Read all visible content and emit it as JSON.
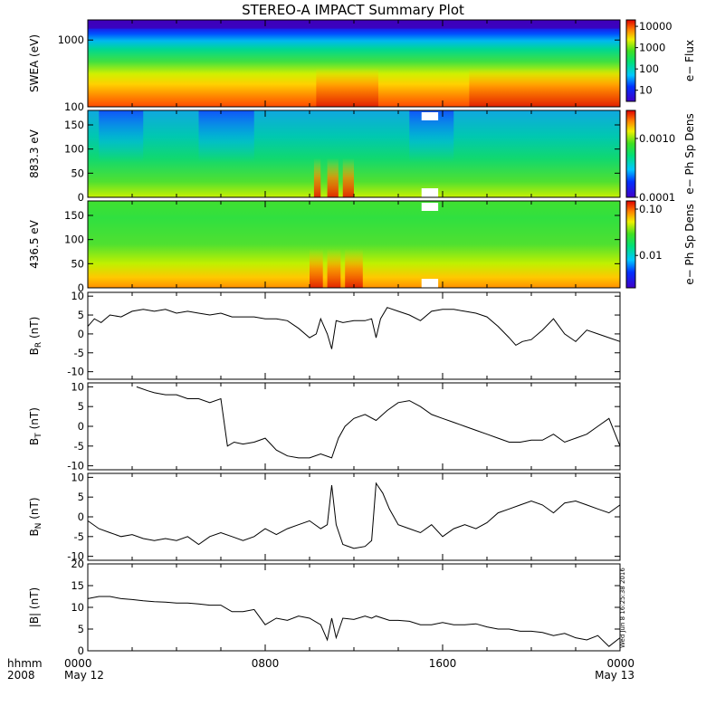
{
  "title": "STEREO-A IMPACT Summary Plot",
  "footer": {
    "hhmm": "hhmm",
    "year": "2008"
  },
  "timestamp": "Wed Jun 8 16:25:38 2016",
  "x_axis": {
    "ticks": [
      {
        "t": 0,
        "time": "0000",
        "date": "May 12"
      },
      {
        "t": 8,
        "time": "0800",
        "date": ""
      },
      {
        "t": 16,
        "time": "1600",
        "date": ""
      },
      {
        "t": 24,
        "time": "0000",
        "date": "May 13"
      }
    ],
    "range_hours": [
      0,
      24
    ]
  },
  "chart_data": [
    {
      "type": "heatmap",
      "ylabel": "SWEA (eV)",
      "yscale": "log",
      "ylim": [
        100,
        2000
      ],
      "yticks": [
        "100",
        "1000"
      ],
      "colorbar": {
        "label": "e− Flux",
        "scale": "log",
        "range": [
          3,
          20000
        ],
        "ticks": [
          "10",
          "100",
          "1000",
          "10000"
        ]
      },
      "notes": "flux highest at low energy (red below ~200 eV), green mid energies, blue/purple near 1500-2000 eV; enhanced red bands around 10:00-13:00 and 17:00-24:00"
    },
    {
      "type": "heatmap",
      "ylabel": "883.3 eV",
      "ylim": [
        0,
        180
      ],
      "yticks": [
        "0",
        "50",
        "100",
        "150"
      ],
      "colorbar": {
        "label": "e− Ph Sp Dens",
        "scale": "log",
        "range": [
          0.0001,
          0.003
        ],
        "ticks": [
          "0.0001",
          "0.0010"
        ]
      },
      "notes": "pitch angle distribution; enhanced (yellow-red) near 0-50 deg around 10:30-12:00, white data gaps near 15:00-15:45"
    },
    {
      "type": "heatmap",
      "ylabel": "436.5 eV",
      "ylim": [
        0,
        180
      ],
      "yticks": [
        "0",
        "50",
        "100",
        "150"
      ],
      "colorbar": {
        "label": "e− Ph Sp Dens",
        "scale": "log",
        "range": [
          0.002,
          0.15
        ],
        "ticks": [
          "0.01",
          "0.10"
        ]
      },
      "notes": "pitch angle distribution; red-orange near 0-50 deg around 10:00-12:30, white data gaps near 15:00-15:45"
    },
    {
      "type": "line",
      "ylabel": "B_R (nT)",
      "ylim": [
        -12,
        11
      ],
      "yticks": [
        "-10",
        "-5",
        "0",
        "5",
        "10"
      ],
      "x": [
        0,
        0.3,
        0.6,
        1,
        1.5,
        2,
        2.5,
        3,
        3.5,
        4,
        4.5,
        5,
        5.5,
        6,
        6.5,
        7,
        7.5,
        8,
        8.5,
        9,
        9.5,
        10,
        10.3,
        10.5,
        10.8,
        11,
        11.2,
        11.5,
        12,
        12.5,
        12.8,
        13,
        13.2,
        13.5,
        14,
        14.5,
        15,
        15.5,
        16,
        16.5,
        17,
        17.5,
        18,
        18.5,
        19,
        19.3,
        19.6,
        20,
        20.5,
        21,
        21.5,
        22,
        22.5,
        23,
        23.5,
        24
      ],
      "y": [
        2,
        4,
        3,
        5,
        4.5,
        6,
        6.5,
        6,
        6.5,
        5.5,
        6,
        5.5,
        5,
        5.5,
        4.5,
        4.5,
        4.5,
        4,
        4,
        3.5,
        1.5,
        -1,
        0,
        4,
        0,
        -4,
        3.5,
        3,
        3.5,
        3.5,
        4,
        -1,
        4,
        7,
        6,
        5,
        3.5,
        6,
        6.5,
        6.5,
        6,
        5.5,
        4.5,
        2,
        -1,
        -3,
        -2,
        -1.5,
        1,
        4,
        0,
        -2,
        1,
        0,
        -1,
        -2
      ]
    },
    {
      "type": "line",
      "ylabel": "B_T (nT)",
      "ylim": [
        -11,
        11
      ],
      "yticks": [
        "-10",
        "-5",
        "0",
        "5",
        "10"
      ],
      "x": [
        2.2,
        2.7,
        3,
        3.5,
        4,
        4.5,
        5,
        5.5,
        6,
        6.3,
        6.6,
        7,
        7.5,
        8,
        8.5,
        9,
        9.5,
        10,
        10.5,
        11,
        11.3,
        11.6,
        12,
        12.5,
        13,
        13.5,
        14,
        14.5,
        15,
        15.5,
        16,
        16.5,
        17,
        17.5,
        18,
        18.5,
        19,
        19.5,
        20,
        20.5,
        21,
        21.5,
        22,
        22.5,
        23,
        23.5,
        24
      ],
      "y": [
        10,
        9,
        8.5,
        8,
        8,
        7,
        7,
        6,
        7,
        -5,
        -4,
        -4.5,
        -4,
        -3,
        -6,
        -7.5,
        -8,
        -8,
        -7,
        -8,
        -3,
        0,
        2,
        3,
        1.5,
        4,
        6,
        6.5,
        5,
        3,
        2,
        1,
        0,
        -1,
        -2,
        -3,
        -4,
        -4,
        -3.5,
        -3.5,
        -2,
        -4,
        -3,
        -2,
        0,
        2,
        -5
      ]
    },
    {
      "type": "line",
      "ylabel": "B_N (nT)",
      "ylim": [
        -11,
        11
      ],
      "yticks": [
        "-10",
        "-5",
        "0",
        "5",
        "10"
      ],
      "x": [
        0,
        0.5,
        1,
        1.5,
        2,
        2.5,
        3,
        3.5,
        4,
        4.5,
        5,
        5.5,
        6,
        6.5,
        7,
        7.5,
        8,
        8.5,
        9,
        9.5,
        10,
        10.5,
        10.8,
        11,
        11.2,
        11.5,
        12,
        12.5,
        12.8,
        13,
        13.3,
        13.6,
        14,
        14.5,
        15,
        15.5,
        16,
        16.5,
        17,
        17.5,
        18,
        18.5,
        19,
        19.5,
        20,
        20.5,
        21,
        21.5,
        22,
        22.5,
        23,
        23.5,
        24
      ],
      "y": [
        -1,
        -3,
        -4,
        -5,
        -4.5,
        -5.5,
        -6,
        -5.5,
        -6,
        -5,
        -7,
        -5,
        -4,
        -5,
        -6,
        -5,
        -3,
        -4.5,
        -3,
        -2,
        -1,
        -3,
        -2,
        8,
        -2,
        -7,
        -8,
        -7.5,
        -6,
        8.5,
        6,
        2,
        -2,
        -3,
        -4,
        -2,
        -5,
        -3,
        -2,
        -3,
        -1.5,
        1,
        2,
        3,
        4,
        3,
        1,
        3.5,
        4,
        3,
        2,
        1,
        3
      ]
    },
    {
      "type": "line",
      "ylabel": "|B| (nT)",
      "ylim": [
        0,
        20
      ],
      "yticks": [
        "0",
        "5",
        "10",
        "15",
        "20"
      ],
      "x": [
        0,
        0.5,
        1,
        1.5,
        2,
        2.5,
        3,
        3.5,
        4,
        4.5,
        5,
        5.5,
        6,
        6.5,
        7,
        7.5,
        8,
        8.5,
        9,
        9.5,
        10,
        10.5,
        10.8,
        11,
        11.2,
        11.5,
        12,
        12.5,
        12.8,
        13,
        13.3,
        13.6,
        14,
        14.5,
        15,
        15.5,
        16,
        16.5,
        17,
        17.5,
        18,
        18.5,
        19,
        19.5,
        20,
        20.5,
        21,
        21.5,
        22,
        22.5,
        23,
        23.5,
        24
      ],
      "y": [
        12,
        12.5,
        12.5,
        12,
        11.8,
        11.5,
        11.3,
        11.2,
        11,
        11,
        10.8,
        10.5,
        10.5,
        9,
        9,
        9.5,
        6,
        7.5,
        7,
        8,
        7.5,
        6,
        2.5,
        7.5,
        3,
        7.5,
        7.2,
        8,
        7.5,
        8,
        7.5,
        7,
        7,
        6.8,
        6,
        6,
        6.5,
        6,
        6,
        6.2,
        5.5,
        5,
        5,
        4.5,
        4.5,
        4.2,
        3.5,
        4,
        3,
        2.5,
        3.5,
        1,
        3
      ]
    }
  ]
}
